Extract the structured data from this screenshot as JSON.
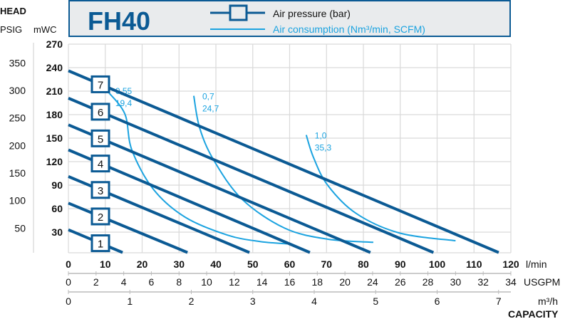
{
  "chart_data": {
    "type": "line",
    "title": "FH40",
    "legend": {
      "placement": "top",
      "entries": [
        {
          "label": "Air pressure (bar)",
          "style": "dark-line-with-box"
        },
        {
          "label_main": "Air consumption (Nm³/min,",
          "label_unit": "SCFM)",
          "style": "light-line"
        }
      ]
    },
    "colors": {
      "pressure": "#0b5a94",
      "consumption": "#1ba3e0",
      "grid": "#d9d9d9",
      "legend_bg": "#e9ebed"
    },
    "y_axis": {
      "label": "HEAD",
      "primary": {
        "unit": "mWC",
        "range": [
          0,
          270
        ],
        "ticks": [
          30,
          60,
          90,
          120,
          150,
          180,
          210,
          240,
          270
        ]
      },
      "secondary": {
        "unit": "PSIG",
        "ticks": [
          50,
          100,
          150,
          200,
          250,
          300,
          350
        ]
      }
    },
    "x_axis": {
      "label": "CAPACITY",
      "primary": {
        "unit": "l/min",
        "range": [
          0,
          120
        ],
        "ticks": [
          "0",
          "10",
          "20",
          "30",
          "40",
          "50",
          "60",
          "70",
          "80",
          "90",
          "100",
          "110",
          "120"
        ]
      },
      "usgpm": {
        "unit": "USGPM",
        "ticks": [
          "0",
          "2",
          "4",
          "6",
          "8",
          "10",
          "12",
          "14",
          "16",
          "18",
          "20",
          "24",
          "26",
          "28",
          "30",
          "32",
          "34"
        ]
      },
      "m3h": {
        "unit": "m³/h",
        "ticks": [
          "0",
          "1",
          "2",
          "3",
          "4",
          "5",
          "6",
          "7"
        ]
      }
    },
    "grid": true,
    "pressure_series": [
      {
        "name": "1",
        "points": [
          [
            0,
            33
          ],
          [
            14.7,
            4
          ]
        ]
      },
      {
        "name": "2",
        "points": [
          [
            0,
            67
          ],
          [
            32.3,
            4
          ]
        ]
      },
      {
        "name": "3",
        "points": [
          [
            0,
            101
          ],
          [
            49.1,
            4
          ]
        ]
      },
      {
        "name": "4",
        "points": [
          [
            0,
            135
          ],
          [
            65.5,
            4
          ]
        ]
      },
      {
        "name": "5",
        "points": [
          [
            0,
            167
          ],
          [
            81.9,
            4
          ]
        ]
      },
      {
        "name": "6",
        "points": [
          [
            0,
            201
          ],
          [
            99,
            4
          ]
        ]
      },
      {
        "name": "7",
        "points": [
          [
            0,
            236
          ],
          [
            116.7,
            4
          ]
        ]
      }
    ],
    "consumption_series": [
      {
        "label_nm3": "0,55",
        "label_scfm": "19,4",
        "points": [
          [
            10.4,
            211
          ],
          [
            15.3,
            181
          ],
          [
            17.2,
            135
          ],
          [
            23,
            85
          ],
          [
            31.7,
            49
          ],
          [
            43.3,
            26
          ],
          [
            52,
            18
          ],
          [
            59.3,
            15
          ]
        ]
      },
      {
        "label_nm3": "0,7",
        "label_scfm": "24,7",
        "points": [
          [
            34,
            204
          ],
          [
            35.6,
            163
          ],
          [
            39.4,
            122
          ],
          [
            47.1,
            72
          ],
          [
            58.7,
            35
          ],
          [
            70.3,
            21
          ],
          [
            82.7,
            17
          ]
        ]
      },
      {
        "label_nm3": "1,0",
        "label_scfm": "35,3",
        "points": [
          [
            64.5,
            154
          ],
          [
            66.5,
            125
          ],
          [
            70.3,
            90
          ],
          [
            78,
            54
          ],
          [
            89.7,
            29
          ],
          [
            105,
            19
          ]
        ]
      }
    ]
  }
}
